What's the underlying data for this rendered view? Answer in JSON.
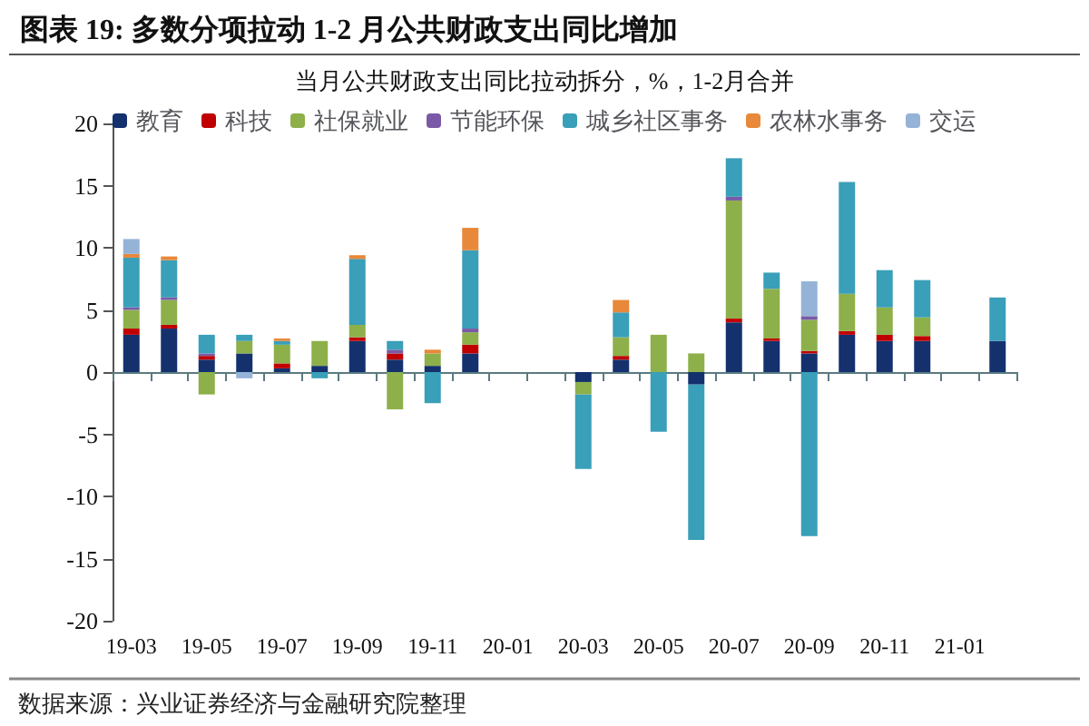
{
  "chart_data": {
    "type": "bar",
    "stacked": true,
    "title": "图表 19: 多数分项拉动 1-2 月公共财政支出同比增加",
    "subtitle": "当月公共财政支出同比拉动拆分，%，1-2月合并",
    "categories": [
      "19-03",
      null,
      "19-05",
      null,
      "19-07",
      null,
      "19-09",
      null,
      "19-11",
      null,
      "20-01",
      null,
      "20-03",
      null,
      "20-05",
      null,
      "20-07",
      null,
      "20-09",
      null,
      "20-11",
      null,
      "21-01",
      null
    ],
    "series": [
      {
        "name": "教育",
        "color": "#14316e",
        "values": [
          3,
          3.5,
          1,
          1.5,
          0.3,
          0.5,
          2.5,
          1,
          0.5,
          1.5,
          null,
          null,
          -0.8,
          1,
          null,
          -1,
          4,
          2.5,
          1.5,
          3,
          2.5,
          2.5,
          null,
          2.5
        ]
      },
      {
        "name": "科技",
        "color": "#c00000",
        "values": [
          0.5,
          0.3,
          0.3,
          null,
          0.4,
          null,
          0.3,
          0.5,
          null,
          0.7,
          null,
          null,
          null,
          0.3,
          null,
          null,
          0.3,
          0.2,
          0.2,
          0.3,
          0.5,
          0.4,
          null,
          null
        ]
      },
      {
        "name": "社保就业",
        "color": "#8db04a",
        "values": [
          1.5,
          2,
          -1.8,
          1,
          1.5,
          2,
          1,
          -3,
          1,
          1,
          null,
          null,
          -1,
          1.5,
          3,
          1.5,
          9.5,
          4,
          2.5,
          3,
          2.2,
          1.5,
          null,
          null
        ]
      },
      {
        "name": "节能环保",
        "color": "#7a5aa6",
        "values": [
          0.2,
          0.2,
          0.2,
          null,
          null,
          null,
          null,
          0.3,
          null,
          0.3,
          null,
          null,
          null,
          null,
          null,
          null,
          0.3,
          null,
          0.3,
          null,
          null,
          null,
          null,
          null
        ]
      },
      {
        "name": "城乡社区事务",
        "color": "#3a9fb8",
        "values": [
          4,
          3,
          1.5,
          0.5,
          0.3,
          -0.5,
          5.3,
          0.7,
          -2.5,
          6.3,
          null,
          null,
          -6,
          2,
          -4.8,
          -12.5,
          3.1,
          1.3,
          -13.2,
          9,
          3,
          3,
          null,
          3.5
        ]
      },
      {
        "name": "农林水事务",
        "color": "#e8883a",
        "values": [
          0.3,
          0.3,
          null,
          null,
          0.2,
          null,
          0.3,
          null,
          0.3,
          1.8,
          null,
          null,
          null,
          1,
          null,
          null,
          null,
          null,
          null,
          null,
          null,
          null,
          null,
          null
        ]
      },
      {
        "name": "交运",
        "color": "#95b3d7",
        "values": [
          1.2,
          null,
          null,
          -0.5,
          null,
          null,
          null,
          null,
          null,
          null,
          null,
          null,
          null,
          null,
          null,
          null,
          null,
          null,
          2.8,
          null,
          null,
          null,
          null,
          null
        ]
      }
    ],
    "ylim": [
      -20,
      20
    ],
    "yticks": [
      -20,
      -15,
      -10,
      -5,
      0,
      5,
      10,
      15,
      20
    ],
    "legend": "top",
    "annotations": [
      "数据来源：兴业证券经济与金融研究院整理"
    ]
  }
}
